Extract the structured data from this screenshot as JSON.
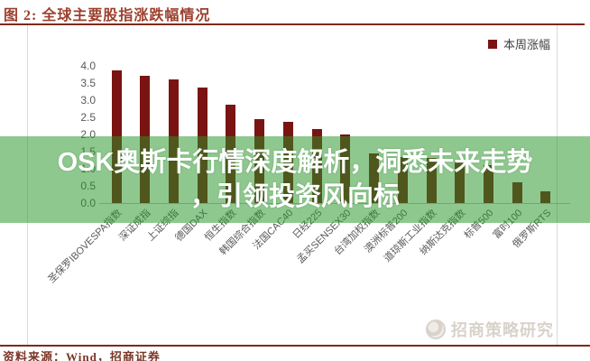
{
  "title": "图 2:  全球主要股指涨跌幅情况",
  "legend": {
    "label": "本周涨幅",
    "swatch_color": "#7a1412"
  },
  "chart_data": {
    "type": "bar",
    "title": "全球主要股指涨跌幅情况",
    "legend": [
      "本周涨幅"
    ],
    "legend_position": "top-right",
    "categories": [
      "圣保罗IBOVESPA指数",
      "深证成指",
      "上证综指",
      "德国DAX",
      "恒生指数",
      "韩国综合指数",
      "法国CAC40",
      "日经225",
      "孟买SENSEX30",
      "台湾加权指数",
      "澳洲标普200",
      "道琼斯工业指数",
      "纳斯达克指数",
      "标普500",
      "富时100",
      "俄罗斯RTS"
    ],
    "values": [
      3.85,
      3.7,
      3.6,
      3.35,
      2.85,
      2.45,
      2.35,
      2.15,
      2.0,
      1.45,
      1.35,
      1.3,
      1.2,
      1.1,
      0.6,
      0.35
    ],
    "xlabel": "",
    "ylabel": "",
    "ylim": [
      0.0,
      4.0
    ],
    "yticks": [
      4.0,
      3.5,
      3.0,
      2.5,
      2.0,
      1.5,
      1.0,
      0.5,
      0.0
    ],
    "grid": false,
    "bar_color": "#7a1412"
  },
  "overlay": {
    "line1": "OSK奥斯卡行情深度解析，洞悉未来走势",
    "line2": "，引领投资风向标",
    "band_color": "rgba(40,150,40,0.52)",
    "text_color": "#ffffff"
  },
  "footer": {
    "source": "资料来源：Wind，招商证券",
    "watermark": "招商策略研究"
  },
  "colors": {
    "title_red": "#9d3f2c",
    "rule_red": "#7c2b1c",
    "bar_maroon": "#7a1412",
    "axis_gray": "#595959",
    "border_gray": "#d9d9d9",
    "watermark_gray": "#d8d2ca"
  }
}
